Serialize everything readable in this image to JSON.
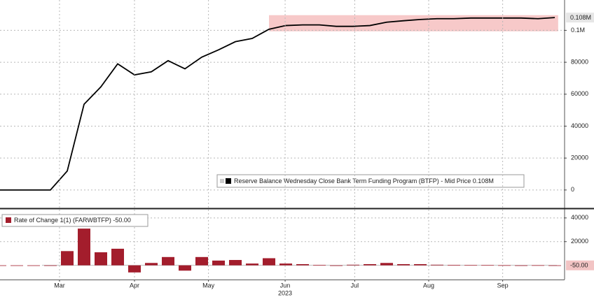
{
  "chart_data": [
    {
      "type": "line",
      "series": [
        {
          "name": "Reserve Balance Wednesday Close Bank Term Funding Program (BTFP) - Mid Price 0.108M",
          "color": "#000000",
          "values": [
            0,
            0,
            0,
            0,
            11900,
            53700,
            64600,
            79000,
            72100,
            74000,
            81000,
            75900,
            83200,
            87800,
            92900,
            94900,
            100700,
            103000,
            103400,
            103400,
            102500,
            102500,
            103000,
            105100,
            106000,
            106800,
            107300,
            107300,
            107700,
            107700,
            107700,
            107700,
            107300,
            108000
          ]
        }
      ],
      "last_label": {
        "value": 108000,
        "label": "0.108M"
      },
      "highlight": {
        "xlim": [
          16,
          33.2
        ],
        "ylim": [
          99400,
          109500
        ],
        "color": "#f7c9c9"
      },
      "xlim": [
        0,
        33.54
      ],
      "ylim": [
        -11000,
        119000
      ],
      "yticks": [
        0,
        20000,
        40000,
        60000,
        80000,
        {
          "value": 100000,
          "label": "0.1M"
        }
      ],
      "grid": true
    },
    {
      "type": "bar",
      "series": [
        {
          "name": "Rate of Change 1(1) (FARWBTFP) -50.00",
          "color": "#a31d2c",
          "values": [
            0,
            0,
            0,
            0,
            12000,
            31000,
            11000,
            14000,
            -6000,
            2000,
            7000,
            -4500,
            7000,
            4000,
            4500,
            1500,
            6000,
            1500,
            1000,
            300,
            -500,
            500,
            1000,
            2000,
            1000,
            1000,
            500,
            300,
            200,
            200,
            100,
            -200,
            100,
            -50
          ]
        }
      ],
      "last_label": {
        "value": -50,
        "label": "-50.00"
      },
      "xlim": [
        0,
        33.54
      ],
      "ylim": [
        -12000,
        47000
      ],
      "yticks": [
        20000,
        40000
      ],
      "xticks": [
        {
          "value": 3.54,
          "label": "Mar"
        },
        {
          "value": 8,
          "label": "Apr"
        },
        {
          "value": 12.4,
          "label": "May"
        },
        {
          "value": 16.96,
          "label": "Jun"
        },
        {
          "value": 21.1,
          "label": "Jul"
        },
        {
          "value": 25.5,
          "label": "Aug"
        },
        {
          "value": 29.9,
          "label": "Sep"
        }
      ],
      "year_label": "2023",
      "grid": true
    }
  ]
}
